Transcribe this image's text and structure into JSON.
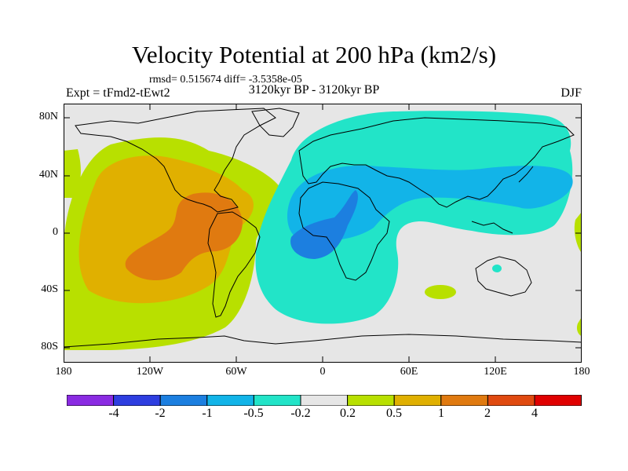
{
  "title": "Velocity Potential at 200 hPa (km2/s)",
  "stats_line": "rmsd= 0.515674 diff= -3.5358e-05",
  "experiment": "Expt = tFmd2-tEwt2",
  "period": "3120kyr BP - 3120kyr BP",
  "season": "DJF",
  "y_axis_labels": [
    "80N",
    "40N",
    "0",
    "40S",
    "80S"
  ],
  "x_axis_labels": [
    "180",
    "120W",
    "60W",
    "0",
    "60E",
    "120E",
    "180"
  ],
  "colorbar": {
    "labels": [
      "-4",
      "-2",
      "-1",
      "-0.5",
      "-0.2",
      "0.2",
      "0.5",
      "1",
      "2",
      "4"
    ],
    "colors": [
      "#8a2be2",
      "#2e3ee0",
      "#1c7fe0",
      "#12b4e8",
      "#22e4c8",
      "#e6e6e6",
      "#b8e000",
      "#e0b000",
      "#e07a10",
      "#e04a10",
      "#e00000"
    ]
  },
  "field_colors": {
    "background": "#e6e6e6",
    "teal": "#22e4c8",
    "light_blue": "#12b4e8",
    "blue": "#1c7fe0",
    "yellow_green": "#b8e000",
    "gold": "#e0b000",
    "orange": "#e07a10"
  }
}
